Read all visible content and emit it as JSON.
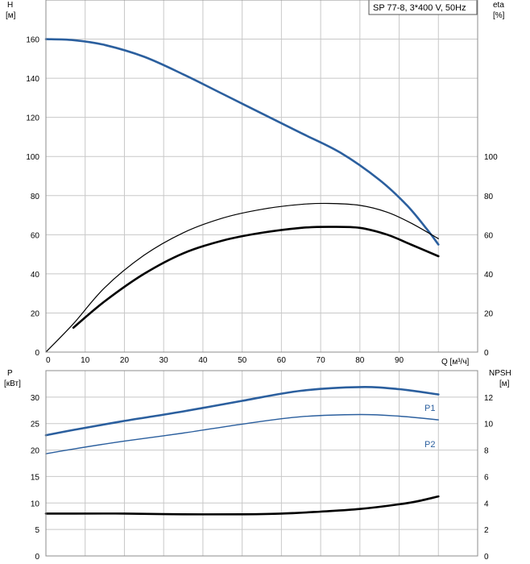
{
  "colors": {
    "blue": "#2b5f9e",
    "black": "#000000",
    "grid": "#c8c8c8"
  },
  "legend": {
    "text": "SP 77-8, 3*400 V, 50Hz"
  },
  "chart_data": [
    {
      "type": "line",
      "axes": {
        "y_left": {
          "label": [
            "H",
            "[м]"
          ],
          "range": [
            0,
            180
          ],
          "ticks": [
            0,
            20,
            40,
            60,
            80,
            100,
            120,
            140,
            160
          ]
        },
        "y_right": {
          "label": [
            "eta",
            "[%]"
          ],
          "range": [
            0,
            180
          ],
          "ticks": [
            0,
            20,
            40,
            60,
            80,
            100
          ]
        },
        "x": {
          "label": "Q [м³/ч]",
          "range": [
            0,
            110
          ],
          "ticks": [
            0,
            10,
            20,
            30,
            40,
            50,
            60,
            70,
            80,
            90
          ]
        }
      },
      "grid": true,
      "series": [
        {
          "role": "head",
          "axis": "left",
          "style": "blue-thick",
          "x": [
            0,
            7,
            15,
            25,
            35,
            45,
            55,
            65,
            75,
            85,
            92,
            97,
            100
          ],
          "y": [
            160,
            159.5,
            157,
            151,
            142,
            132,
            122,
            112,
            102,
            88,
            75,
            63,
            55
          ]
        },
        {
          "role": "eta-pump",
          "axis": "right",
          "style": "black-thin",
          "x": [
            0,
            7,
            15,
            25,
            35,
            45,
            55,
            65,
            72,
            80,
            87,
            93,
            100
          ],
          "y": [
            0,
            14.5,
            33,
            49.5,
            61,
            68.5,
            73,
            75.5,
            76,
            75,
            71.5,
            66,
            58
          ]
        },
        {
          "role": "eta-total",
          "axis": "right",
          "style": "black-thick",
          "x": [
            7,
            15,
            25,
            35,
            45,
            55,
            65,
            72,
            80,
            87,
            93,
            100
          ],
          "y": [
            12.5,
            26,
            40,
            50.5,
            57,
            61,
            63.5,
            64,
            63.5,
            60,
            55,
            49
          ]
        }
      ]
    },
    {
      "type": "line",
      "axes": {
        "y_left": {
          "label": [
            "P",
            "[кВт]"
          ],
          "range": [
            0,
            35
          ],
          "ticks": [
            0,
            5,
            10,
            15,
            20,
            25,
            30
          ]
        },
        "y_right": {
          "label": [
            "NPSH",
            "[м]"
          ],
          "range": [
            0,
            14
          ],
          "ticks": [
            0,
            2,
            4,
            6,
            8,
            10,
            12
          ]
        },
        "x": {
          "range": [
            0,
            110
          ]
        }
      },
      "grid": true,
      "series": [
        {
          "name": "P1",
          "axis": "left",
          "style": "blue-thick",
          "x": [
            0,
            7,
            20,
            35,
            50,
            65,
            80,
            90,
            100
          ],
          "y": [
            22.8,
            23.8,
            25.5,
            27.3,
            29.3,
            31.2,
            31.9,
            31.5,
            30.5
          ]
        },
        {
          "name": "P2",
          "axis": "left",
          "style": "blue-thin",
          "x": [
            0,
            7,
            20,
            35,
            50,
            65,
            80,
            90,
            100
          ],
          "y": [
            19.3,
            20.2,
            21.7,
            23.2,
            24.9,
            26.3,
            26.7,
            26.4,
            25.7
          ]
        },
        {
          "role": "npsh",
          "axis": "right",
          "style": "black-thick",
          "x": [
            0,
            7,
            20,
            35,
            50,
            60,
            70,
            80,
            90,
            95,
            100
          ],
          "y": [
            3.2,
            3.2,
            3.2,
            3.15,
            3.15,
            3.2,
            3.35,
            3.55,
            3.9,
            4.15,
            4.5
          ]
        }
      ]
    }
  ]
}
